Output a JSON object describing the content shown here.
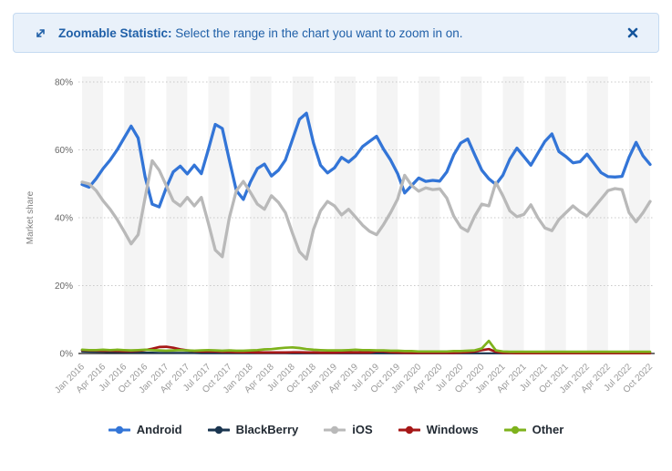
{
  "banner": {
    "title_bold": "Zoomable Statistic:",
    "title_rest": " Select the range in the chart you want to zoom in on.",
    "bg_color": "#e9f1fa",
    "border_color": "#c5daf1",
    "text_color": "#2060a8",
    "zoom_icon": "zoom-expand-icon",
    "close_icon": "close-icon"
  },
  "chart_data": {
    "type": "line",
    "title": "",
    "xlabel": "",
    "ylabel": "Market share",
    "ylim": [
      0,
      84
    ],
    "y_tick_values": [
      0,
      20,
      40,
      60,
      80
    ],
    "y_tick_labels": [
      "0%",
      "20%",
      "40%",
      "60%",
      "80%"
    ],
    "grid": "dotted-horizontal",
    "plot_band_color": "#f4f4f4",
    "axis_line_color": "#1a1a1a",
    "x_unit": "month",
    "months_per_tick": 3,
    "x_tick_labels": [
      "Jan 2016",
      "Apr 2016",
      "Jul 2016",
      "Oct 2016",
      "Jan 2017",
      "Apr 2017",
      "Jul 2017",
      "Oct 2017",
      "Jan 2018",
      "Apr 2018",
      "Jul 2018",
      "Oct 2018",
      "Jan 2019",
      "Apr 2019",
      "Jul 2019",
      "Oct 2019",
      "Jan 2020",
      "Apr 2020",
      "Jul 2020",
      "Oct 2020",
      "Jan 2021",
      "Apr 2021",
      "Jul 2021",
      "Oct 2021",
      "Jan 2022",
      "Apr 2022",
      "Jul 2022",
      "Oct 2022"
    ],
    "legend_position": "bottom-center",
    "series": [
      {
        "name": "Android",
        "color": "#3375d7",
        "line_width": 3.3,
        "values": [
          49.8,
          49.0,
          51.5,
          54.5,
          57.0,
          60.0,
          63.5,
          67.0,
          63.5,
          52.0,
          44.0,
          43.2,
          48.8,
          53.5,
          55.2,
          52.9,
          55.5,
          53.0,
          60.0,
          67.5,
          66.3,
          57.0,
          48.0,
          45.4,
          50.5,
          54.5,
          55.8,
          52.3,
          54.0,
          57.0,
          63.0,
          69.0,
          70.8,
          62.0,
          55.5,
          53.2,
          54.7,
          57.8,
          56.4,
          58.2,
          61.0,
          62.5,
          64.0,
          60.2,
          57.0,
          53.0,
          47.3,
          49.5,
          51.7,
          50.7,
          51.0,
          50.8,
          53.5,
          58.5,
          62.0,
          63.2,
          58.5,
          54.0,
          51.5,
          49.8,
          52.5,
          57.3,
          60.5,
          58.0,
          55.5,
          59.0,
          62.5,
          64.7,
          59.5,
          58.0,
          56.2,
          56.5,
          58.7,
          56.0,
          53.3,
          52.1,
          52.0,
          52.2,
          57.8,
          62.2,
          58.2,
          55.7
        ]
      },
      {
        "name": "BlackBerry",
        "color": "#1a3550",
        "line_width": 2.2,
        "values": [
          0.6,
          0.55,
          0.5,
          0.45,
          0.4,
          0.4,
          0.35,
          0.3,
          0.3,
          0.25,
          0.25,
          0.2,
          0.2,
          0.2,
          0.15,
          0.15,
          0.15,
          0.1,
          0.1,
          0.1,
          0.1,
          0.1,
          0.1,
          0.1,
          0.1,
          0.1,
          0.1,
          0.1,
          0.1,
          0.1,
          0.05,
          0.05,
          0.05,
          0.05,
          0.05,
          0.05,
          0.05,
          0.05,
          0.05,
          0.05,
          0.05,
          0.05,
          0.05,
          0.05,
          0.05,
          0.05,
          0.05,
          0.05,
          0.05,
          0.05,
          0.05,
          0.05,
          0.05,
          0.05,
          0.05,
          0.05,
          0.05,
          0.05,
          0.05,
          0.05,
          0.05,
          0.05,
          0.05,
          0.05,
          0.05,
          0.05,
          0.05,
          0.05,
          0.05,
          0.05,
          0.05,
          0.05,
          0.05,
          0.05,
          0.05,
          0.05,
          0.05,
          0.05,
          0.05,
          0.05,
          0.05,
          0.05
        ]
      },
      {
        "name": "iOS",
        "color": "#b9b9b9",
        "line_width": 3.3,
        "values": [
          50.5,
          50.0,
          48.0,
          45.0,
          42.5,
          39.5,
          36.0,
          32.3,
          35.0,
          46.0,
          56.8,
          54.0,
          49.5,
          45.0,
          43.5,
          46.0,
          43.5,
          46.0,
          38.5,
          30.5,
          28.5,
          40.0,
          48.0,
          50.7,
          47.5,
          44.0,
          42.5,
          46.5,
          44.5,
          41.5,
          35.5,
          30.0,
          27.8,
          36.5,
          42.0,
          44.8,
          43.5,
          40.8,
          42.5,
          40.2,
          37.8,
          36.0,
          35.0,
          38.0,
          41.5,
          45.5,
          52.5,
          49.5,
          47.8,
          48.8,
          48.3,
          48.5,
          45.8,
          40.5,
          37.2,
          36.0,
          40.5,
          44.0,
          43.5,
          50.4,
          46.5,
          42.0,
          40.3,
          41.0,
          43.8,
          40.0,
          37.0,
          36.2,
          39.5,
          41.5,
          43.5,
          41.8,
          40.5,
          43.0,
          45.5,
          48.0,
          48.6,
          48.3,
          41.5,
          38.8,
          41.5,
          44.8
        ]
      },
      {
        "name": "Windows",
        "color": "#a61717",
        "line_width": 2.7,
        "values": [
          1.0,
          0.9,
          0.85,
          0.8,
          0.8,
          0.75,
          0.7,
          0.7,
          0.8,
          1.0,
          1.4,
          1.9,
          2.0,
          1.7,
          1.2,
          0.9,
          0.7,
          0.6,
          0.65,
          0.6,
          0.5,
          0.45,
          0.4,
          0.35,
          0.35,
          0.3,
          0.3,
          0.3,
          0.3,
          0.3,
          0.35,
          0.35,
          0.3,
          0.3,
          0.25,
          0.25,
          0.25,
          0.3,
          0.3,
          0.3,
          0.3,
          0.3,
          0.65,
          0.6,
          0.4,
          0.3,
          0.25,
          0.2,
          0.2,
          0.2,
          0.2,
          0.2,
          0.2,
          0.2,
          0.3,
          0.4,
          0.6,
          1.0,
          1.3,
          0.5,
          0.2,
          0.15,
          0.12,
          0.1,
          0.1,
          0.1,
          0.1,
          0.1,
          0.1,
          0.1,
          0.1,
          0.1,
          0.1,
          0.1,
          0.1,
          0.1,
          0.1,
          0.1,
          0.1,
          0.1,
          0.1,
          0.1
        ]
      },
      {
        "name": "Other",
        "color": "#7eb21c",
        "line_width": 2.7,
        "values": [
          1.1,
          1.0,
          1.0,
          1.1,
          1.0,
          1.1,
          1.0,
          0.9,
          1.0,
          1.1,
          1.0,
          0.9,
          0.8,
          0.9,
          1.0,
          0.9,
          0.8,
          0.9,
          1.0,
          0.9,
          0.8,
          0.9,
          0.8,
          0.8,
          0.9,
          1.0,
          1.2,
          1.3,
          1.5,
          1.7,
          1.8,
          1.6,
          1.3,
          1.1,
          1.0,
          0.9,
          0.9,
          0.9,
          1.0,
          1.1,
          1.0,
          1.0,
          0.9,
          0.9,
          0.8,
          0.8,
          0.7,
          0.7,
          0.6,
          0.6,
          0.6,
          0.6,
          0.6,
          0.7,
          0.7,
          0.8,
          0.9,
          1.5,
          3.7,
          0.9,
          0.6,
          0.5,
          0.5,
          0.5,
          0.5,
          0.5,
          0.5,
          0.5,
          0.5,
          0.5,
          0.5,
          0.5,
          0.5,
          0.5,
          0.5,
          0.5,
          0.5,
          0.5,
          0.5,
          0.5,
          0.5,
          0.5
        ]
      }
    ]
  }
}
